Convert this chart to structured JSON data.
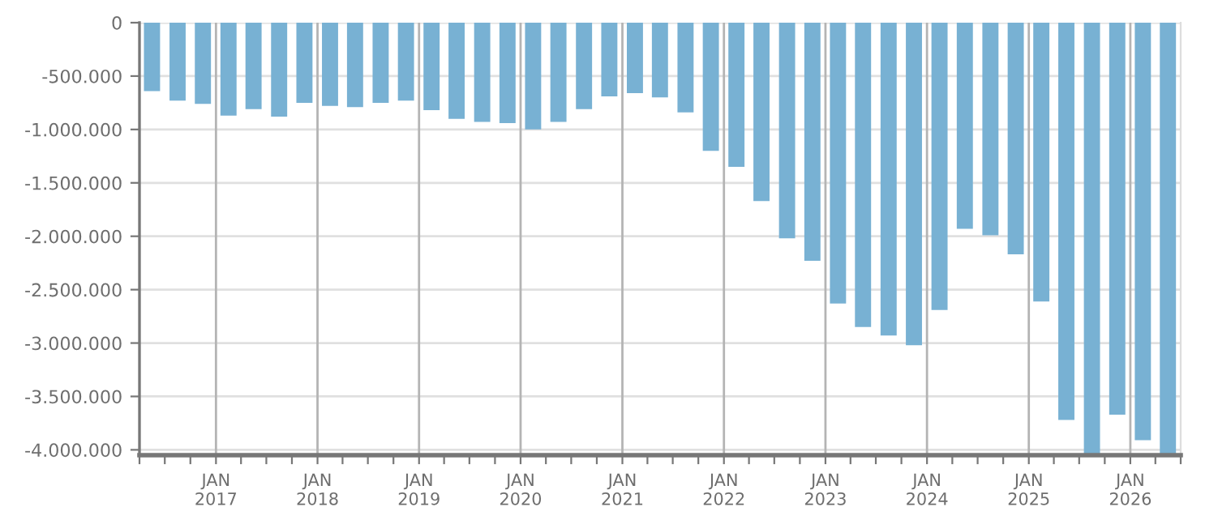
{
  "chart_data": {
    "type": "bar",
    "color": "#78b1d3",
    "x": [
      "2016-05-16",
      "2016-08-16",
      "2016-11-15",
      "2017-02-15",
      "2017-05-16",
      "2017-08-16",
      "2017-11-15",
      "2018-02-15",
      "2018-05-16",
      "2018-08-16",
      "2018-11-15",
      "2019-02-15",
      "2019-05-16",
      "2019-08-16",
      "2019-11-15",
      "2020-02-15",
      "2020-05-16",
      "2020-08-16",
      "2020-11-15",
      "2021-02-15",
      "2021-05-16",
      "2021-08-16",
      "2021-11-15",
      "2022-02-15",
      "2022-05-16",
      "2022-08-16",
      "2022-11-15",
      "2023-02-15",
      "2023-05-16",
      "2023-08-16",
      "2023-11-15",
      "2024-02-15",
      "2024-05-16",
      "2024-08-16",
      "2024-11-15",
      "2025-02-15",
      "2025-05-16",
      "2025-08-16",
      "2025-11-15",
      "2026-02-15",
      "2026-05-16"
    ],
    "values": [
      -640000,
      -730000,
      -760000,
      -870000,
      -810000,
      -880000,
      -750000,
      -780000,
      -790000,
      -750000,
      -730000,
      -820000,
      -900000,
      -930000,
      -940000,
      -1000000,
      -930000,
      -810000,
      -690000,
      -660000,
      -700000,
      -840000,
      -1200000,
      -1350000,
      -1670000,
      -2020000,
      -2230000,
      -2630000,
      -2850000,
      -2930000,
      -3020000,
      -2690000,
      -1930000,
      -1990000,
      -2170000,
      -2610000,
      -3720000,
      -4040000,
      -3670000,
      -3910000,
      -4040000
    ],
    "xlim": [
      "2016-04-01",
      "2026-07-01"
    ],
    "xticks": [
      {
        "value": "2016-04-01",
        "label": null
      },
      {
        "value": "2016-07-01",
        "label": null
      },
      {
        "value": "2016-10-01",
        "label": null
      },
      {
        "value": "2017-01-01",
        "label": "JAN\n2017"
      },
      {
        "value": "2017-04-01",
        "label": null
      },
      {
        "value": "2017-07-01",
        "label": null
      },
      {
        "value": "2017-10-01",
        "label": null
      },
      {
        "value": "2018-01-01",
        "label": "JAN\n2018"
      },
      {
        "value": "2018-04-01",
        "label": null
      },
      {
        "value": "2018-07-01",
        "label": null
      },
      {
        "value": "2018-10-01",
        "label": null
      },
      {
        "value": "2019-01-01",
        "label": "JAN\n2019"
      },
      {
        "value": "2019-04-01",
        "label": null
      },
      {
        "value": "2019-07-01",
        "label": null
      },
      {
        "value": "2019-10-01",
        "label": null
      },
      {
        "value": "2020-01-01",
        "label": "JAN\n2020"
      },
      {
        "value": "2020-04-01",
        "label": null
      },
      {
        "value": "2020-07-01",
        "label": null
      },
      {
        "value": "2020-10-01",
        "label": null
      },
      {
        "value": "2021-01-01",
        "label": "JAN\n2021"
      },
      {
        "value": "2021-04-01",
        "label": null
      },
      {
        "value": "2021-07-01",
        "label": null
      },
      {
        "value": "2021-10-01",
        "label": null
      },
      {
        "value": "2022-01-01",
        "label": "JAN\n2022"
      },
      {
        "value": "2022-04-01",
        "label": null
      },
      {
        "value": "2022-07-01",
        "label": null
      },
      {
        "value": "2022-10-01",
        "label": null
      },
      {
        "value": "2023-01-01",
        "label": "JAN\n2023"
      },
      {
        "value": "2023-04-01",
        "label": null
      },
      {
        "value": "2023-07-01",
        "label": null
      },
      {
        "value": "2023-10-01",
        "label": null
      },
      {
        "value": "2024-01-01",
        "label": "JAN\n2024"
      },
      {
        "value": "2024-04-01",
        "label": null
      },
      {
        "value": "2024-07-01",
        "label": null
      },
      {
        "value": "2024-10-01",
        "label": null
      },
      {
        "value": "2025-01-01",
        "label": "JAN\n2025"
      },
      {
        "value": "2025-04-01",
        "label": null
      },
      {
        "value": "2025-07-01",
        "label": null
      },
      {
        "value": "2025-10-01",
        "label": null
      },
      {
        "value": "2026-01-01",
        "label": "JAN\n2026"
      },
      {
        "value": "2026-04-01",
        "label": null
      },
      {
        "value": "2026-07-01",
        "label": null
      }
    ],
    "ylim": [
      -4050000,
      0
    ],
    "yticks": [
      0,
      {
        "value": -500000,
        "label": "-500.000"
      },
      {
        "value": -1000000,
        "label": "-1.000.000"
      },
      {
        "value": -1500000,
        "label": "-1.500.000"
      },
      {
        "value": -2000000,
        "label": "-2.000.000"
      },
      {
        "value": -2500000,
        "label": "-2.500.000"
      },
      {
        "value": -3000000,
        "label": "-3.000.000"
      },
      {
        "value": -3500000,
        "label": "-3.500.000"
      },
      {
        "value": -4000000,
        "label": "-4.000.000"
      }
    ],
    "grid": true
  }
}
